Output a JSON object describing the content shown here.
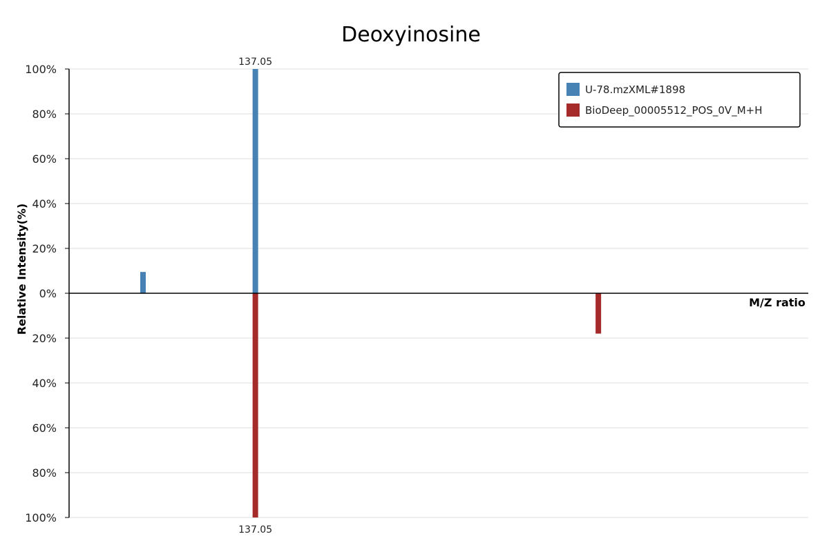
{
  "chart_data": {
    "type": "bar",
    "title": "Deoxyinosine",
    "xlabel": "M/Z ratio",
    "ylabel": "Relative Intensity(%)",
    "xlim": [
      0,
      1
    ],
    "ylim": [
      -100,
      100
    ],
    "yticks": [
      {
        "value": 100,
        "label": "100%"
      },
      {
        "value": 80,
        "label": "80%"
      },
      {
        "value": 60,
        "label": "60%"
      },
      {
        "value": 40,
        "label": "40%"
      },
      {
        "value": 20,
        "label": "20%"
      },
      {
        "value": 0,
        "label": "0%"
      },
      {
        "value": -20,
        "label": "20%"
      },
      {
        "value": -40,
        "label": "40%"
      },
      {
        "value": -60,
        "label": "60%"
      },
      {
        "value": -80,
        "label": "80%"
      },
      {
        "value": -100,
        "label": "100%"
      }
    ],
    "grid": true,
    "legend_position": "top-right",
    "series": [
      {
        "name": "U-78.mzXML#1898",
        "color": "#4682b4",
        "direction": "up",
        "peaks": [
          {
            "x": 0.1,
            "value": 9.5,
            "label": ""
          },
          {
            "x": 0.252,
            "value": 100,
            "label": "137.05"
          }
        ]
      },
      {
        "name": "BioDeep_00005512_POS_0V_M+H",
        "color": "#a52a2a",
        "direction": "down",
        "peaks": [
          {
            "x": 0.252,
            "value": 100,
            "label": "137.05"
          },
          {
            "x": 0.716,
            "value": 18,
            "label": ""
          }
        ]
      }
    ]
  }
}
